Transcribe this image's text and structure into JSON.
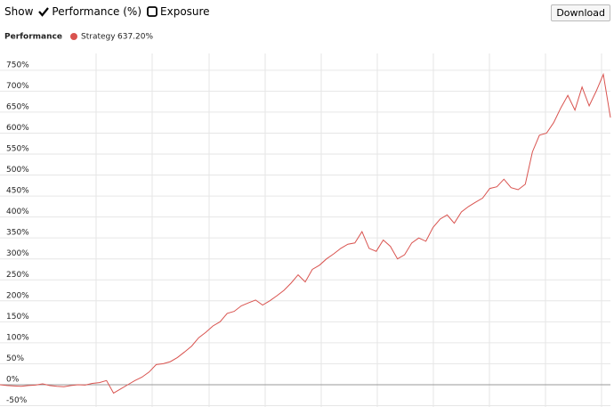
{
  "toolbar": {
    "show": "Show",
    "options": [
      "Performance (%)",
      "Exposure"
    ],
    "button": "Download"
  },
  "chart_data": {
    "type": "line",
    "title": "Performance",
    "series": [
      {
        "name": "Strategy",
        "color": "#d9534f",
        "value_label": "637.20%",
        "values": [
          0,
          -2,
          -3,
          -4,
          -2,
          -1,
          2,
          -2,
          -4,
          -5,
          -2,
          0,
          -1,
          3,
          5,
          10,
          -20,
          -10,
          0,
          10,
          18,
          30,
          48,
          50,
          55,
          65,
          78,
          92,
          112,
          125,
          140,
          150,
          170,
          175,
          188,
          195,
          202,
          190,
          200,
          212,
          225,
          242,
          262,
          245,
          275,
          285,
          300,
          312,
          325,
          335,
          338,
          365,
          325,
          318,
          345,
          330,
          300,
          310,
          338,
          350,
          342,
          375,
          395,
          405,
          385,
          412,
          425,
          435,
          445,
          468,
          472,
          490,
          470,
          465,
          478,
          555,
          595,
          600,
          625,
          660,
          690,
          655,
          710,
          665,
          700,
          740,
          637.2
        ]
      }
    ],
    "ylim": [
      -50,
      790
    ],
    "yticks": [
      {
        "value": -50,
        "label": "-50%"
      },
      {
        "value": 0,
        "label": "0%"
      },
      {
        "value": 50,
        "label": "50%"
      },
      {
        "value": 100,
        "label": "100%"
      },
      {
        "value": 150,
        "label": "150%"
      },
      {
        "value": 200,
        "label": "200%"
      },
      {
        "value": 250,
        "label": "250%"
      },
      {
        "value": 300,
        "label": "300%"
      },
      {
        "value": 350,
        "label": "350%"
      },
      {
        "value": 400,
        "label": "400%"
      },
      {
        "value": 450,
        "label": "450%"
      },
      {
        "value": 500,
        "label": "500%"
      },
      {
        "value": 550,
        "label": "550%"
      },
      {
        "value": 600,
        "label": "600%"
      },
      {
        "value": 650,
        "label": "650%"
      },
      {
        "value": 700,
        "label": "700%"
      },
      {
        "value": 750,
        "label": "750%"
      }
    ],
    "grid": true
  }
}
